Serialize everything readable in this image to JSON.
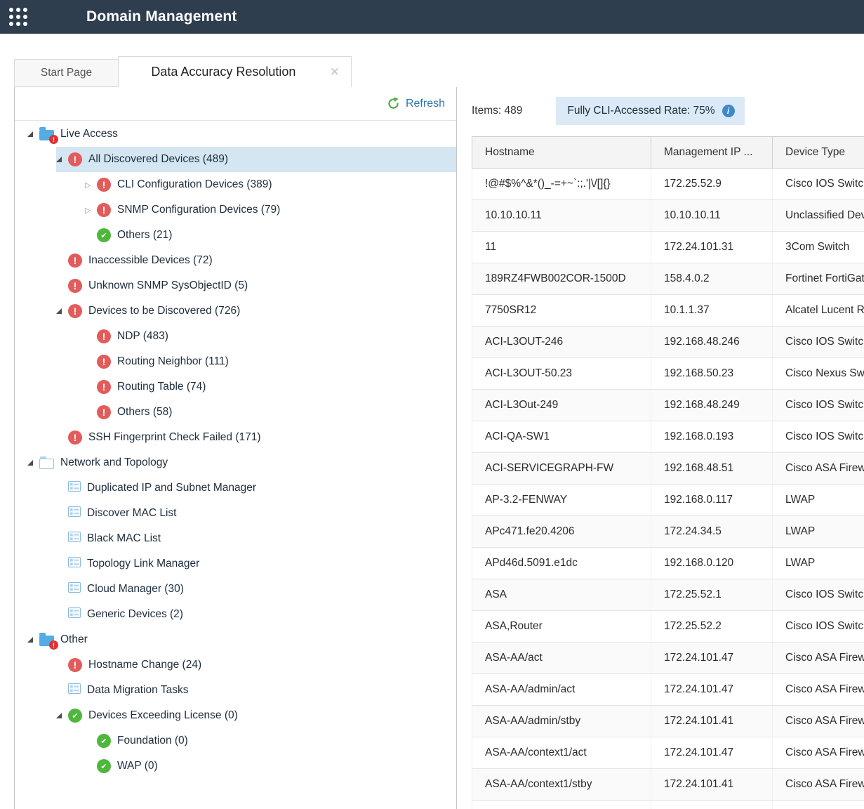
{
  "header": {
    "title": "Domain Management"
  },
  "tabs": {
    "start_page": {
      "label": "Start Page"
    },
    "active_tab": {
      "label": "Data Accuracy Resolution",
      "close_icon": "✕"
    }
  },
  "tree_panel": {
    "refresh_label": "Refresh",
    "nodes": [
      {
        "level": 0,
        "arrow": "open",
        "icon": "folder-alert",
        "label": "Live Access",
        "selected": false
      },
      {
        "level": 1,
        "arrow": "open",
        "icon": "error",
        "label": "All Discovered Devices (489)",
        "selected": true
      },
      {
        "level": 2,
        "arrow": "closed",
        "icon": "error",
        "label": "CLI Configuration Devices (389)",
        "selected": false
      },
      {
        "level": 2,
        "arrow": "closed",
        "icon": "error",
        "label": "SNMP Configuration Devices (79)",
        "selected": false
      },
      {
        "level": 2,
        "arrow": "none",
        "icon": "ok",
        "label": "Others (21)",
        "selected": false
      },
      {
        "level": 1,
        "arrow": "none",
        "icon": "error",
        "label": "Inaccessible Devices (72)",
        "selected": false
      },
      {
        "level": 1,
        "arrow": "none",
        "icon": "error",
        "label": "Unknown SNMP SysObjectID (5)",
        "selected": false
      },
      {
        "level": 1,
        "arrow": "open",
        "icon": "error",
        "label": "Devices to be Discovered (726)",
        "selected": false
      },
      {
        "level": 2,
        "arrow": "none",
        "icon": "error",
        "label": "NDP (483)",
        "selected": false
      },
      {
        "level": 2,
        "arrow": "none",
        "icon": "error",
        "label": "Routing Neighbor (111)",
        "selected": false
      },
      {
        "level": 2,
        "arrow": "none",
        "icon": "error",
        "label": "Routing Table (74)",
        "selected": false
      },
      {
        "level": 2,
        "arrow": "none",
        "icon": "error",
        "label": "Others (58)",
        "selected": false
      },
      {
        "level": 1,
        "arrow": "none",
        "icon": "error",
        "label": "SSH Fingerprint Check Failed (171)",
        "selected": false
      },
      {
        "level": 0,
        "arrow": "open",
        "icon": "folder",
        "label": "Network and Topology",
        "selected": false
      },
      {
        "level": 1,
        "arrow": "none",
        "icon": "list",
        "label": "Duplicated IP and Subnet Manager",
        "selected": false
      },
      {
        "level": 1,
        "arrow": "none",
        "icon": "list",
        "label": "Discover MAC List",
        "selected": false
      },
      {
        "level": 1,
        "arrow": "none",
        "icon": "list",
        "label": "Black MAC List",
        "selected": false
      },
      {
        "level": 1,
        "arrow": "none",
        "icon": "list",
        "label": "Topology Link Manager",
        "selected": false
      },
      {
        "level": 1,
        "arrow": "none",
        "icon": "list",
        "label": "Cloud Manager (30)",
        "selected": false
      },
      {
        "level": 1,
        "arrow": "none",
        "icon": "list",
        "label": "Generic Devices (2)",
        "selected": false
      },
      {
        "level": 0,
        "arrow": "open",
        "icon": "folder-alert",
        "label": "Other",
        "selected": false
      },
      {
        "level": 1,
        "arrow": "none",
        "icon": "error",
        "label": "Hostname Change (24)",
        "selected": false
      },
      {
        "level": 1,
        "arrow": "none",
        "icon": "list",
        "label": "Data Migration Tasks",
        "selected": false
      },
      {
        "level": 1,
        "arrow": "open",
        "icon": "ok",
        "label": "Devices Exceeding License (0)",
        "selected": false
      },
      {
        "level": 2,
        "arrow": "none",
        "icon": "ok",
        "label": "Foundation (0)",
        "selected": false
      },
      {
        "level": 2,
        "arrow": "none",
        "icon": "ok",
        "label": "WAP (0)",
        "selected": false
      }
    ]
  },
  "main": {
    "items_label": "Items: 489",
    "rate_label": "Fully CLI-Accessed Rate: 75%",
    "table": {
      "columns": [
        "Hostname",
        "Management IP ...",
        "Device Type"
      ],
      "rows": [
        [
          "!@#$%^&*()_-=+~`:;.'|\\/[]{}",
          "172.25.52.9",
          "Cisco IOS Switch"
        ],
        [
          "10.10.10.11",
          "10.10.10.11",
          "Unclassified Device"
        ],
        [
          "11",
          "172.24.101.31",
          "3Com Switch"
        ],
        [
          "189RZ4FWB002COR-1500D",
          "158.4.0.2",
          "Fortinet FortiGate"
        ],
        [
          "7750SR12",
          "10.1.1.37",
          "Alcatel Lucent Router"
        ],
        [
          "ACI-L3OUT-246",
          "192.168.48.246",
          "Cisco IOS Switch"
        ],
        [
          "ACI-L3OUT-50.23",
          "192.168.50.23",
          "Cisco Nexus Switch"
        ],
        [
          "ACI-L3Out-249",
          "192.168.48.249",
          "Cisco IOS Switch"
        ],
        [
          "ACI-QA-SW1",
          "192.168.0.193",
          "Cisco IOS Switch"
        ],
        [
          "ACI-SERVICEGRAPH-FW",
          "192.168.48.51",
          "Cisco ASA Firewall"
        ],
        [
          "AP-3.2-FENWAY",
          "192.168.0.117",
          "LWAP"
        ],
        [
          "APc471.fe20.4206",
          "172.24.34.5",
          "LWAP"
        ],
        [
          "APd46d.5091.e1dc",
          "192.168.0.120",
          "LWAP"
        ],
        [
          "ASA",
          "172.25.52.1",
          "Cisco IOS Switch"
        ],
        [
          "ASA,Router",
          "172.25.52.2",
          "Cisco IOS Switch"
        ],
        [
          "ASA-AA/act",
          "172.24.101.47",
          "Cisco ASA Firewall"
        ],
        [
          "ASA-AA/admin/act",
          "172.24.101.47",
          "Cisco ASA Firewall"
        ],
        [
          "ASA-AA/admin/stby",
          "172.24.101.41",
          "Cisco ASA Firewall"
        ],
        [
          "ASA-AA/context1/act",
          "172.24.101.47",
          "Cisco ASA Firewall"
        ],
        [
          "ASA-AA/context1/stby",
          "172.24.101.41",
          "Cisco ASA Firewall"
        ]
      ]
    }
  },
  "colors": {
    "header_bg": "#2e3e4e",
    "selected_row_bg": "#d5e6f3",
    "error_red": "#e25c5c",
    "badge_red": "#df3232",
    "ok_green": "#4eb73c",
    "folder_blue": "#55abe3",
    "chip_bg": "#dce9f6",
    "info_blue": "#3d89c9",
    "refresh_green": "#4fad43",
    "link_blue": "#2a76b8"
  }
}
